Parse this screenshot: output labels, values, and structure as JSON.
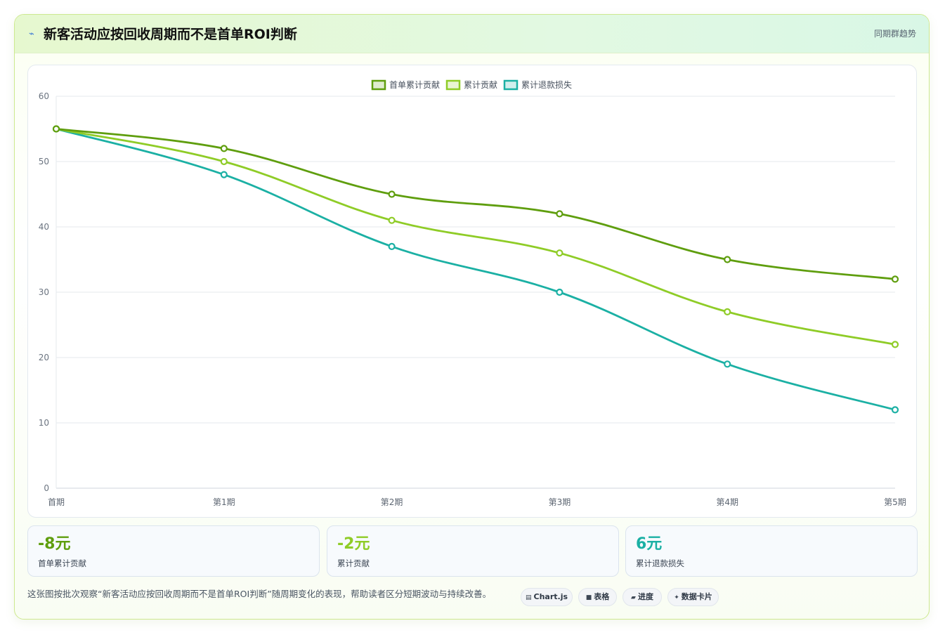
{
  "header": {
    "icon": "lightning-icon",
    "title": "新客活动应按回收周期而不是首单ROI判断",
    "link": "同期群趋势"
  },
  "chart_data": {
    "type": "line",
    "categories": [
      "首期",
      "第1期",
      "第2期",
      "第3期",
      "第4期",
      "第5期"
    ],
    "series": [
      {
        "name": "首单累计贡献",
        "color": "#5f9e0e",
        "values": [
          55,
          52,
          45,
          42,
          35,
          32
        ]
      },
      {
        "name": "累计贡献",
        "color": "#8fcc27",
        "values": [
          55,
          50,
          41,
          36,
          27,
          22
        ]
      },
      {
        "name": "累计退款损失",
        "color": "#1bb0a4",
        "values": [
          55,
          48,
          37,
          30,
          19,
          12
        ]
      }
    ],
    "ylim": [
      0,
      60
    ],
    "yticks": [
      0,
      10,
      20,
      30,
      40,
      50,
      60
    ],
    "legend": "top-center",
    "grid": true
  },
  "kpis": [
    {
      "value": "-8元",
      "label": "首单累计贡献",
      "color": "#5f9e0e"
    },
    {
      "value": "-2元",
      "label": "累计贡献",
      "color": "#8fcc27"
    },
    {
      "value": "6元",
      "label": "累计退款损失",
      "color": "#1bb0a4"
    }
  ],
  "footer": {
    "text": "这张图按批次观察“新客活动应按回收周期而不是首单ROI判断”随周期变化的表现，帮助读者区分短期波动与持续改善。",
    "chips": [
      {
        "label": "Chart.js",
        "glyph": "▤",
        "icon": "chart-icon"
      },
      {
        "label": "表格",
        "glyph": "■",
        "icon": "table-icon"
      },
      {
        "label": "进度",
        "glyph": "▰",
        "icon": "progress-icon"
      },
      {
        "label": "数据卡片",
        "glyph": "✦",
        "icon": "sparkle-icon"
      }
    ]
  }
}
